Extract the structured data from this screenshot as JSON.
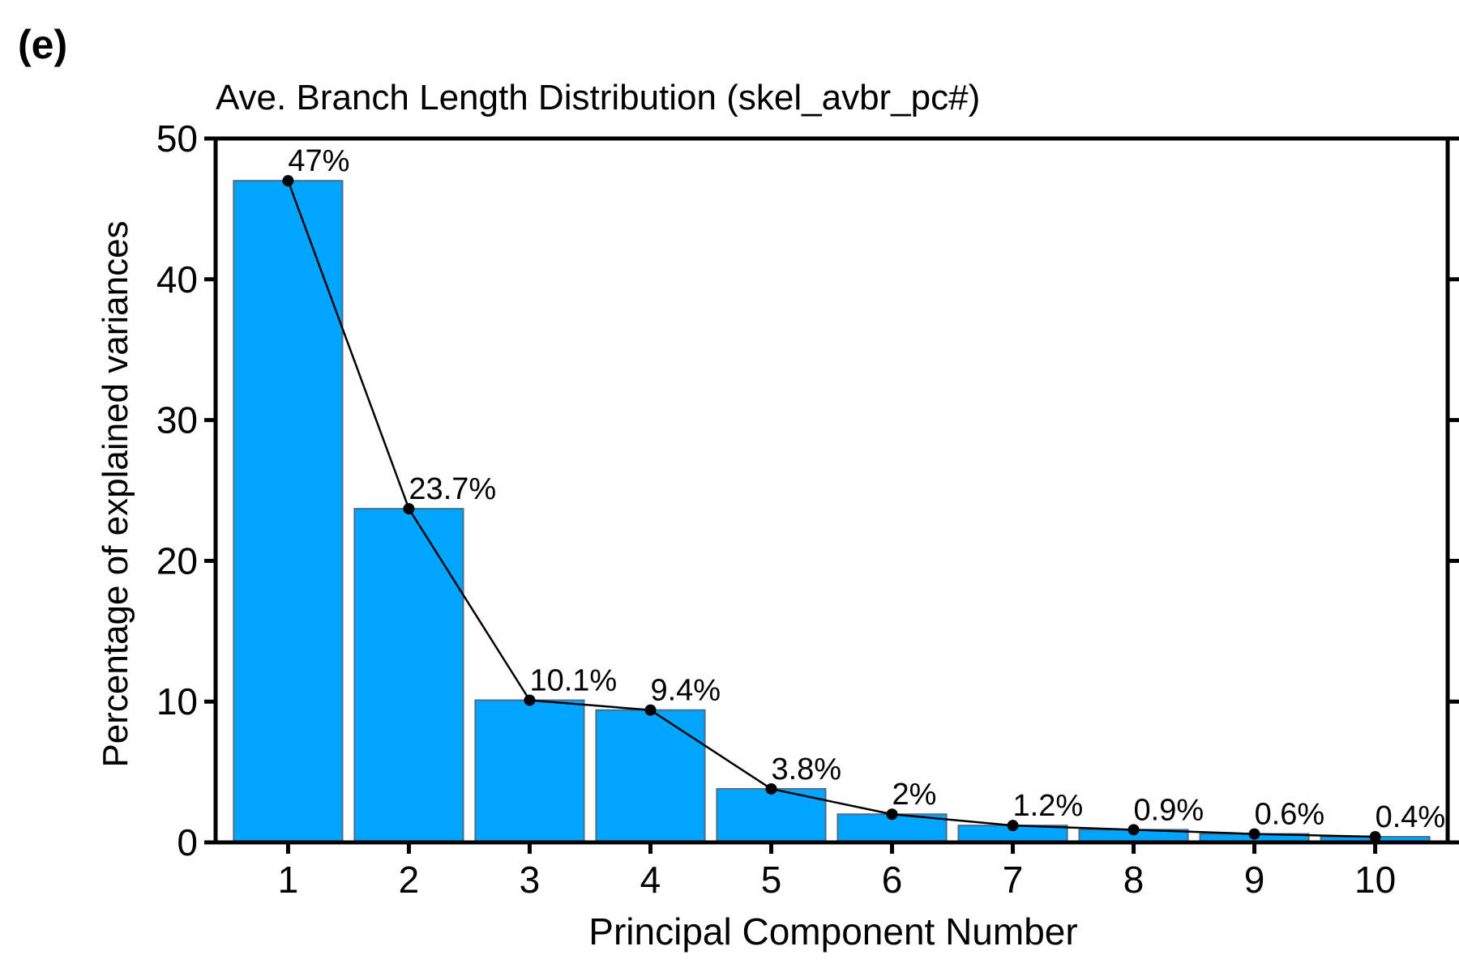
{
  "panel_label": "(e)",
  "colors": {
    "bar_fill": "#00A5FF",
    "bar_stroke": "#4A6E8A",
    "line": "#000000"
  },
  "chart_data": {
    "type": "bar",
    "title": "Ave. Branch Length Distribution (skel_avbr_pc#)",
    "xlabel": "Principal Component Number",
    "ylabel": "Percentage of explained variances",
    "ylim": [
      0,
      50
    ],
    "yticks": [
      0,
      10,
      20,
      30,
      40,
      50
    ],
    "categories": [
      "1",
      "2",
      "3",
      "4",
      "5",
      "6",
      "7",
      "8",
      "9",
      "10"
    ],
    "values": [
      47,
      23.7,
      10.1,
      9.4,
      3.8,
      2,
      1.2,
      0.9,
      0.6,
      0.4
    ],
    "data_labels": [
      "47%",
      "23.7%",
      "10.1%",
      "9.4%",
      "3.8%",
      "2%",
      "1.2%",
      "0.9%",
      "0.6%",
      "0.4%"
    ],
    "overlay": "line with points",
    "grid": false
  }
}
